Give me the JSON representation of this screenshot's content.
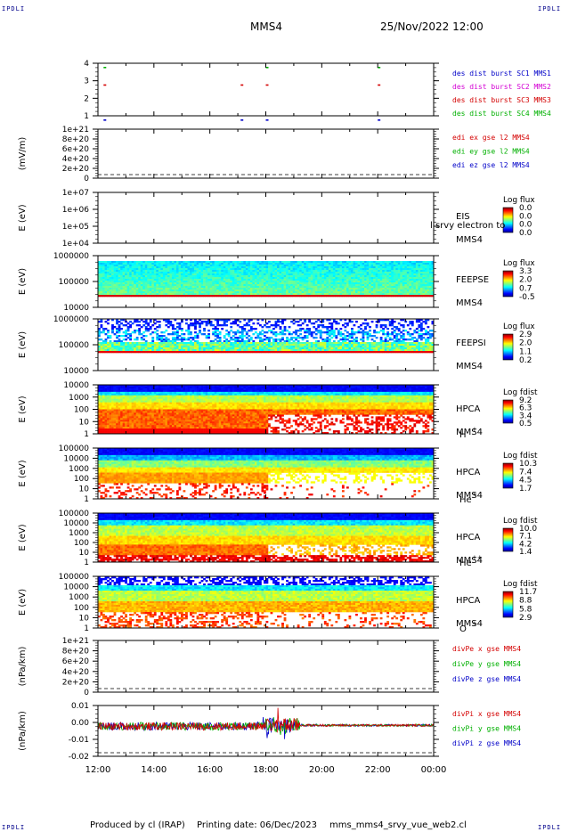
{
  "corners": {
    "tl": "IPDLI",
    "tr": "IPDLI",
    "bl": "IPDLI",
    "br": "IPDLI"
  },
  "header": {
    "spacecraft": "MMS4",
    "datetime": "25/Nov/2022 12:00"
  },
  "footer": {
    "producer": "Produced by cl (IRAP)",
    "printing": "Printing date: 06/Dec/2023",
    "file": "mms_mms4_srvy_vue_web2.cl"
  },
  "colors": {
    "red": "#d40000",
    "green": "#00b000",
    "blue": "#0000c8",
    "magenta": "#d400d4"
  },
  "chart_data": [
    {
      "id": "burst",
      "type": "scatter",
      "ylabel": "",
      "yticks": [
        "4",
        "3",
        "2",
        "1"
      ],
      "legend": [
        {
          "label": "des dist burst SC1 MMS1",
          "color": "#0000c8"
        },
        {
          "label": "des dist burst SC2 MMS2",
          "color": "#d400d4"
        },
        {
          "label": "des dist burst SC3 MMS3",
          "color": "#d40000"
        },
        {
          "label": "des dist burst SC4 MMS4",
          "color": "#00b000"
        }
      ],
      "events": [
        {
          "sc": 4,
          "t": 0.2
        },
        {
          "sc": 3,
          "t": 0.2
        },
        {
          "sc": 1,
          "t": 0.2
        },
        {
          "sc": 3,
          "t": 5.1
        },
        {
          "sc": 1,
          "t": 5.1
        },
        {
          "sc": 4,
          "t": 6.0
        },
        {
          "sc": 3,
          "t": 6.0
        },
        {
          "sc": 1,
          "t": 6.0
        },
        {
          "sc": 4,
          "t": 10.0
        },
        {
          "sc": 3,
          "t": 10.0
        },
        {
          "sc": 1,
          "t": 10.0
        }
      ]
    },
    {
      "id": "edi",
      "type": "line",
      "ylabel": "(mV/m)",
      "yticks": [
        "1e+21",
        "8e+20",
        "6e+20",
        "4e+20",
        "2e+20",
        "0"
      ],
      "legend": [
        {
          "label": "edi ex gse l2 MMS4",
          "color": "#d40000"
        },
        {
          "label": "edi ey gse l2 MMS4",
          "color": "#00b000"
        },
        {
          "label": "edi ez gse l2 MMS4",
          "color": "#0000c8"
        }
      ]
    },
    {
      "id": "eis",
      "type": "heatmap",
      "ylabel": "E (eV)",
      "yticks": [
        "1e+07",
        "1e+06",
        "1e+05",
        "1e+04"
      ],
      "instrument": "EIS",
      "sc": "MMS4",
      "overlay": "l srvy electron to",
      "cbar_title": "Log flux",
      "cbar_ticks": [
        "0.0",
        "0.0",
        "0.0",
        "0.0"
      ]
    },
    {
      "id": "feepse",
      "type": "heatmap",
      "ylabel": "E (eV)",
      "yticks": [
        "1000000",
        "100000",
        "10000"
      ],
      "instrument": "FEEPSE",
      "sc": "MMS4",
      "cbar_title": "Log flux",
      "cbar_ticks": [
        "3.3",
        "2.0",
        "0.7",
        "-0.5"
      ]
    },
    {
      "id": "feepsi",
      "type": "heatmap",
      "ylabel": "E (eV)",
      "yticks": [
        "1000000",
        "100000",
        "10000"
      ],
      "instrument": "FEEPSI",
      "sc": "MMS4",
      "cbar_title": "Log flux",
      "cbar_ticks": [
        "2.9",
        "2.0",
        "1.1",
        "0.2"
      ]
    },
    {
      "id": "hpca_h",
      "type": "heatmap",
      "ylabel": "E (eV)",
      "yticks": [
        "10000",
        "1000",
        "100",
        "10",
        "1"
      ],
      "instrument": "HPCA",
      "sc": "MMS4",
      "species": "H",
      "charge": "+",
      "cbar_title": "Log fdist",
      "cbar_ticks": [
        "9.2",
        "6.3",
        "3.4",
        "0.5"
      ]
    },
    {
      "id": "hpca_he",
      "type": "heatmap",
      "ylabel": "E (eV)",
      "yticks": [
        "100000",
        "10000",
        "1000",
        "100",
        "10",
        "1"
      ],
      "instrument": "HPCA",
      "sc": "MMS4",
      "species": "He",
      "charge": "+",
      "cbar_title": "Log fdist",
      "cbar_ticks": [
        "10.3",
        "7.4",
        "4.5",
        "1.7"
      ]
    },
    {
      "id": "hpca_hepp",
      "type": "heatmap",
      "ylabel": "E (eV)",
      "yticks": [
        "100000",
        "10000",
        "1000",
        "100",
        "10",
        "1"
      ],
      "instrument": "HPCA",
      "sc": "MMS4",
      "species": "He",
      "charge": "++",
      "cbar_title": "Log fdist",
      "cbar_ticks": [
        "10.0",
        "7.1",
        "4.2",
        "1.4"
      ]
    },
    {
      "id": "hpca_o",
      "type": "heatmap",
      "ylabel": "E (eV)",
      "yticks": [
        "100000",
        "10000",
        "1000",
        "100",
        "10",
        "1"
      ],
      "instrument": "HPCA",
      "sc": "MMS4",
      "species": "O",
      "charge": "+",
      "cbar_title": "Log fdist",
      "cbar_ticks": [
        "11.7",
        "8.8",
        "5.8",
        "2.9"
      ]
    },
    {
      "id": "divpe",
      "type": "line",
      "ylabel": "(nPa/km)",
      "yticks": [
        "1e+21",
        "8e+20",
        "6e+20",
        "4e+20",
        "2e+20",
        "0"
      ],
      "legend": [
        {
          "label": "divPe x gse MMS4",
          "color": "#d40000"
        },
        {
          "label": "divPe y gse MMS4",
          "color": "#00b000"
        },
        {
          "label": "divPe z gse MMS4",
          "color": "#0000c8"
        }
      ]
    },
    {
      "id": "divpi",
      "type": "line",
      "ylabel": "(nPa/km)",
      "yticks": [
        "0.01",
        "0.00",
        "-0.01",
        "-0.02"
      ],
      "ylim": [
        -0.025,
        0.016
      ],
      "legend": [
        {
          "label": "divPi x gse MMS4",
          "color": "#d40000"
        },
        {
          "label": "divPi y gse MMS4",
          "color": "#00b000"
        },
        {
          "label": "divPi z gse MMS4",
          "color": "#0000c8"
        }
      ]
    }
  ],
  "xaxis": {
    "ticks": [
      "12:00",
      "14:00",
      "16:00",
      "18:00",
      "20:00",
      "22:00",
      "00:00"
    ],
    "hours": 12
  }
}
